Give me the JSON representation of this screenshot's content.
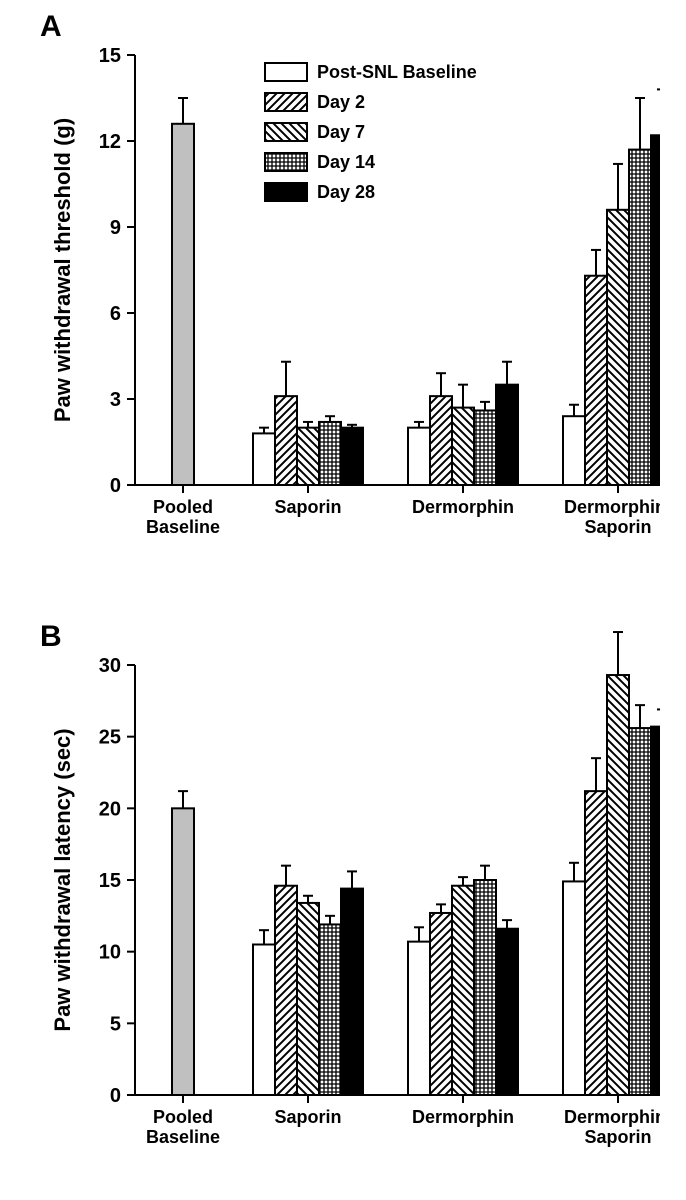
{
  "legend": {
    "items": [
      {
        "label": "Post-SNL Baseline",
        "fill": "#ffffff",
        "pattern": null
      },
      {
        "label": "Day 2",
        "fill": "#ffffff",
        "pattern": "diagNE"
      },
      {
        "label": "Day 7",
        "fill": "#ffffff",
        "pattern": "diagNW"
      },
      {
        "label": "Day 14",
        "fill": "#ffffff",
        "pattern": "grid"
      },
      {
        "label": "Day 28",
        "fill": "#000000",
        "pattern": null
      }
    ],
    "baseline": {
      "label": null,
      "fill": "#c0c0c0",
      "pattern": null
    }
  },
  "chartA": {
    "letter": "A",
    "ylabel": "Paw withdrawal threshold (g)",
    "ylim": [
      0,
      15
    ],
    "ytick_step": 3,
    "axis_color": "#000000",
    "bar_stroke": "#000000",
    "err_stroke": "#000000",
    "background": "#ffffff",
    "label_fontsize": 22,
    "tick_fontsize": 20,
    "group_fontsize": 18,
    "legend_fontsize": 18,
    "groups": [
      {
        "name": "Pooled\nBaseline",
        "bars": [
          {
            "series": "baseline",
            "val": 12.6,
            "err": 0.9
          }
        ]
      },
      {
        "name": "Saporin",
        "bars": [
          {
            "series": 0,
            "val": 1.8,
            "err": 0.2
          },
          {
            "series": 1,
            "val": 3.1,
            "err": 1.2
          },
          {
            "series": 2,
            "val": 2.0,
            "err": 0.2
          },
          {
            "series": 3,
            "val": 2.2,
            "err": 0.2
          },
          {
            "series": 4,
            "val": 2.0,
            "err": 0.1
          }
        ]
      },
      {
        "name": "Dermorphin",
        "bars": [
          {
            "series": 0,
            "val": 2.0,
            "err": 0.2
          },
          {
            "series": 1,
            "val": 3.1,
            "err": 0.8
          },
          {
            "series": 2,
            "val": 2.7,
            "err": 0.8
          },
          {
            "series": 3,
            "val": 2.6,
            "err": 0.3
          },
          {
            "series": 4,
            "val": 3.5,
            "err": 0.8
          }
        ]
      },
      {
        "name": "Dermorphin-\nSaporin",
        "bars": [
          {
            "series": 0,
            "val": 2.4,
            "err": 0.4
          },
          {
            "series": 1,
            "val": 7.3,
            "err": 0.9
          },
          {
            "series": 2,
            "val": 9.6,
            "err": 1.6
          },
          {
            "series": 3,
            "val": 11.7,
            "err": 1.8
          },
          {
            "series": 4,
            "val": 12.2,
            "err": 1.6
          }
        ]
      }
    ]
  },
  "chartB": {
    "letter": "B",
    "ylabel": "Paw withdrawal latency (sec)",
    "ylim": [
      0,
      30
    ],
    "ytick_step": 5,
    "axis_color": "#000000",
    "bar_stroke": "#000000",
    "err_stroke": "#000000",
    "background": "#ffffff",
    "label_fontsize": 22,
    "tick_fontsize": 20,
    "group_fontsize": 18,
    "groups": [
      {
        "name": "Pooled\nBaseline",
        "bars": [
          {
            "series": "baseline",
            "val": 20.0,
            "err": 1.2
          }
        ]
      },
      {
        "name": "Saporin",
        "bars": [
          {
            "series": 0,
            "val": 10.5,
            "err": 1.0
          },
          {
            "series": 1,
            "val": 14.6,
            "err": 1.4
          },
          {
            "series": 2,
            "val": 13.4,
            "err": 0.5
          },
          {
            "series": 3,
            "val": 11.9,
            "err": 0.6
          },
          {
            "series": 4,
            "val": 14.4,
            "err": 1.2
          }
        ]
      },
      {
        "name": "Dermorphin",
        "bars": [
          {
            "series": 0,
            "val": 10.7,
            "err": 1.0
          },
          {
            "series": 1,
            "val": 12.7,
            "err": 0.6
          },
          {
            "series": 2,
            "val": 14.6,
            "err": 0.6
          },
          {
            "series": 3,
            "val": 15.0,
            "err": 1.0
          },
          {
            "series": 4,
            "val": 11.6,
            "err": 0.6
          }
        ]
      },
      {
        "name": "Dermorphin-\nSaporin",
        "bars": [
          {
            "series": 0,
            "val": 14.9,
            "err": 1.3
          },
          {
            "series": 1,
            "val": 21.2,
            "err": 2.3
          },
          {
            "series": 2,
            "val": 29.3,
            "err": 3.0
          },
          {
            "series": 3,
            "val": 25.6,
            "err": 1.6
          },
          {
            "series": 4,
            "val": 25.7,
            "err": 1.2
          }
        ]
      }
    ]
  }
}
